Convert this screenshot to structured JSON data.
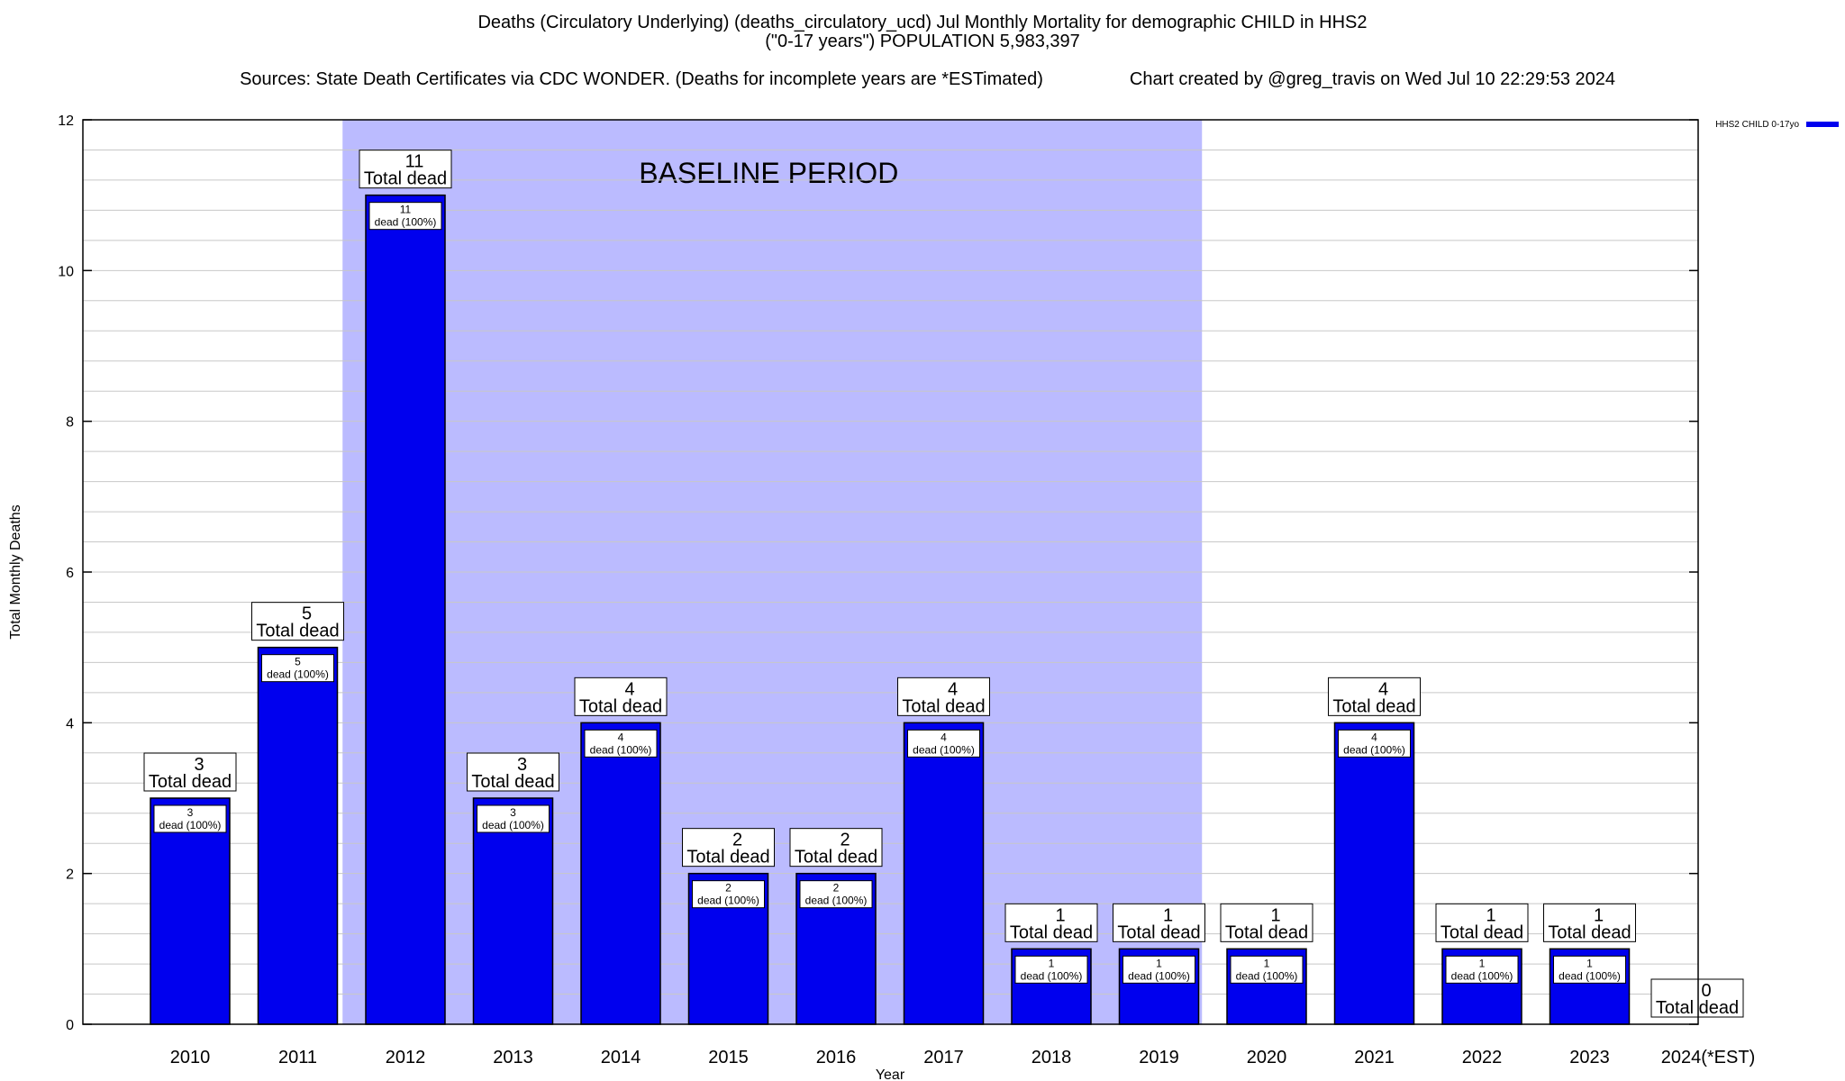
{
  "header": {
    "line1": "Deaths (Circulatory Underlying) (deaths_circulatory_ucd) Jul Monthly Mortality for demographic CHILD in HHS2",
    "line2": "(\"0-17 years\") POPULATION 5,983,397",
    "line3_sources": "Sources: State Death Certificates via CDC WONDER. (Deaths for incomplete years are *ESTimated)",
    "line3_credit": "Chart created by @greg_travis on Wed Jul 10 22:29:53 2024"
  },
  "chart_data": {
    "type": "bar",
    "title": "Deaths (Circulatory Underlying) (deaths_circulatory_ucd) Jul Monthly Mortality for demographic CHILD in HHS2",
    "xlabel": "Year",
    "ylabel": "Total Monthly Deaths",
    "ylim": [
      0,
      12
    ],
    "yticks": [
      "0",
      "2",
      "4",
      "6",
      "8",
      "10",
      "12"
    ],
    "grid": true,
    "legend_position": "top-right",
    "categories": [
      "2010",
      "2011",
      "2012",
      "2013",
      "2014",
      "2015",
      "2016",
      "2017",
      "2018",
      "2019",
      "2020",
      "2021",
      "2022",
      "2023",
      "2024(*EST)"
    ],
    "series": [
      {
        "name": "HHS2 CHILD 0-17yo",
        "color": "#0000ee",
        "values": [
          3,
          5,
          11,
          3,
          4,
          2,
          2,
          4,
          1,
          1,
          1,
          4,
          1,
          1,
          0
        ]
      }
    ],
    "total_labels": [
      "3",
      "5",
      "11",
      "3",
      "4",
      "2",
      "2",
      "4",
      "1",
      "1",
      "1",
      "4",
      "1",
      "1",
      "0"
    ],
    "total_caption": "Total dead",
    "inner_labels": [
      "3",
      "5",
      "11",
      "3",
      "4",
      "2",
      "2",
      "4",
      "1",
      "1",
      "1",
      "4",
      "1",
      "1",
      ""
    ],
    "inner_caption": "dead (100%)",
    "baseline": {
      "label": "BASELINE PERIOD",
      "from": "2012",
      "to": "2019",
      "color": "#bbbbff"
    }
  }
}
